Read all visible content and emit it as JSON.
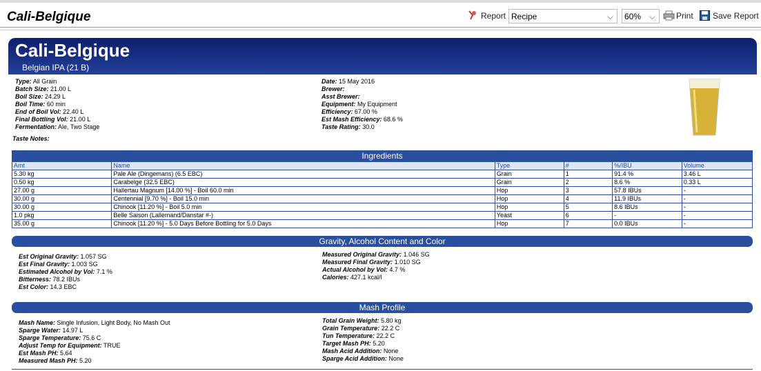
{
  "toolbar": {
    "title": "Cali-Belgique",
    "report_label": "Report",
    "report_select": "Recipe",
    "zoom": "60%",
    "print": "Print",
    "save": "Save Report"
  },
  "header": {
    "title": "Cali-Belgique",
    "subtitle": "Belgian IPA (21 B)"
  },
  "info": {
    "left": [
      {
        "label": "Type:",
        "value": "All Grain"
      },
      {
        "label": "Batch Size:",
        "value": "21.00 L"
      },
      {
        "label": "Boil Size:",
        "value": "24.29 L"
      },
      {
        "label": "Boil Time:",
        "value": "60 min"
      },
      {
        "label": "End of Boil Vol:",
        "value": "22.40 L"
      },
      {
        "label": "Final Bottling Vol:",
        "value": "21.00 L"
      },
      {
        "label": "Fermentation:",
        "value": "Ale, Two Stage"
      }
    ],
    "right": [
      {
        "label": "Date:",
        "value": "15 May 2016"
      },
      {
        "label": "Brewer:"
      },
      {
        "label": "Asst Brewer:"
      },
      {
        "label": "Equipment:",
        "value": "My Equipment"
      },
      {
        "label": "Efficiency:",
        "value": "67.00 %"
      },
      {
        "label": "Est Mash Efficiency:",
        "value": "68.6 %"
      },
      {
        "label": "Taste Rating:",
        "value": "30.0"
      }
    ],
    "taste_notes": "Taste Notes:"
  },
  "ingredients": {
    "title": "Ingredients",
    "columns": [
      "Amt",
      "Name",
      "Type",
      "#",
      "%/IBU",
      "Volume"
    ],
    "rows": [
      [
        "5.30 kg",
        "Pale Ale (Dingemans) (6.5 EBC)",
        "Grain",
        "1",
        "91.4 %",
        "3.46 L"
      ],
      [
        "0.50 kg",
        "Carabelge (32.5 EBC)",
        "Grain",
        "2",
        "8.6 %",
        "0.33 L"
      ],
      [
        "27.00 g",
        "Hallertau Magnum [14.00 %] - Boil 60.0 min",
        "Hop",
        "3",
        "57.8 IBUs",
        "-"
      ],
      [
        "30.00 g",
        "Centennial [9.70 %] - Boil 15.0 min",
        "Hop",
        "4",
        "11.9 IBUs",
        "-"
      ],
      [
        "30.00 g",
        "Chinook [11.20 %] - Boil 5.0 min",
        "Hop",
        "5",
        "8.6 IBUs",
        "-"
      ],
      [
        "1.0 pkg",
        "Belle Saison (Lallemand/Danstar #-)",
        "Yeast",
        "6",
        "-",
        "-"
      ],
      [
        "35.00 g",
        "Chinook [11.20 %] - 5.0 Days Before Bottling for 5.0 Days",
        "Hop",
        "7",
        "0.0 IBUs",
        "-"
      ]
    ]
  },
  "gravity": {
    "title": "Gravity, Alcohol Content and Color",
    "left": [
      {
        "label": "Est Original Gravity:",
        "value": "1.057 SG"
      },
      {
        "label": "Est Final Gravity:",
        "value": "1.003 SG"
      },
      {
        "label": "Estimated Alcohol by Vol:",
        "value": "7.1 %"
      },
      {
        "label": "Bitterness:",
        "value": "78.2 IBUs"
      },
      {
        "label": "Est Color:",
        "value": "14.3 EBC"
      }
    ],
    "right": [
      {
        "label": "Measured Original Gravity:",
        "value": "1.046 SG"
      },
      {
        "label": "Measured Final Gravity:",
        "value": "1.010 SG"
      },
      {
        "label": "Actual Alcohol by Vol:",
        "value": "4.7 %"
      },
      {
        "label": "Calories:",
        "value": "427.1 kcal/l"
      }
    ]
  },
  "mash": {
    "title": "Mash Profile",
    "left": [
      {
        "label": "Mash Name:",
        "value": "Single Infusion, Light Body, No Mash Out"
      },
      {
        "label": "Sparge Water:",
        "value": "14.97 L"
      },
      {
        "label": "Sparge Temperature:",
        "value": "75.6 C"
      },
      {
        "label": "Adjust Temp for Equipment:",
        "value": "TRUE"
      },
      {
        "label": "Est Mash PH:",
        "value": "5.64"
      },
      {
        "label": "Measured Mash PH:",
        "value": "5.20"
      }
    ],
    "right": [
      {
        "label": "Total Grain Weight:",
        "value": "5.80 kg"
      },
      {
        "label": "Grain Temperature:",
        "value": "22.2 C"
      },
      {
        "label": "Tun Temperature:",
        "value": "22.2 C"
      },
      {
        "label": "Target Mash PH:",
        "value": "5.20"
      },
      {
        "label": "Mash Acid Addition:",
        "value": "None"
      },
      {
        "label": "Sparge Acid Addition:",
        "value": "None"
      }
    ]
  }
}
